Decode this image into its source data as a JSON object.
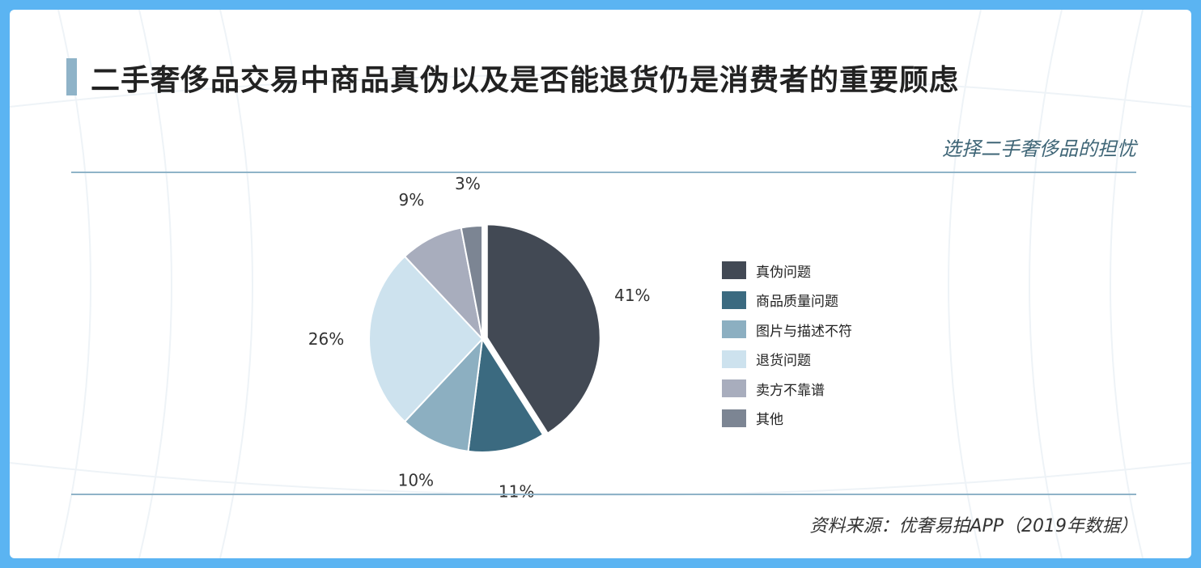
{
  "header": {
    "title": "二手奢侈品交易中商品真伪以及是否能退货仍是消费者的重要顾虑",
    "subtitle": "选择二手奢侈品的担忧"
  },
  "footer": {
    "source": "资料来源：优奢易拍APP（2019年数据）"
  },
  "colors": {
    "frame": "#5bb4f2",
    "accent": "#8fb3c8",
    "subtitle": "#3e6576"
  },
  "chart_data": {
    "type": "pie",
    "title": "选择二手奢侈品的担忧",
    "legend_position": "right",
    "slices": [
      {
        "label": "真伪问题",
        "value": 41,
        "value_label": "41%",
        "color": "#424954"
      },
      {
        "label": "商品质量问题",
        "value": 11,
        "value_label": "11%",
        "color": "#3b6a80"
      },
      {
        "label": "图片与描述不符",
        "value": 10,
        "value_label": "10%",
        "color": "#8cafc1"
      },
      {
        "label": "退货问题",
        "value": 26,
        "value_label": "26%",
        "color": "#cde2ee"
      },
      {
        "label": "卖方不靠谱",
        "value": 9,
        "value_label": "9%",
        "color": "#a8adbd"
      },
      {
        "label": "其他",
        "value": 3,
        "value_label": "3%",
        "color": "#7c8593"
      }
    ]
  }
}
